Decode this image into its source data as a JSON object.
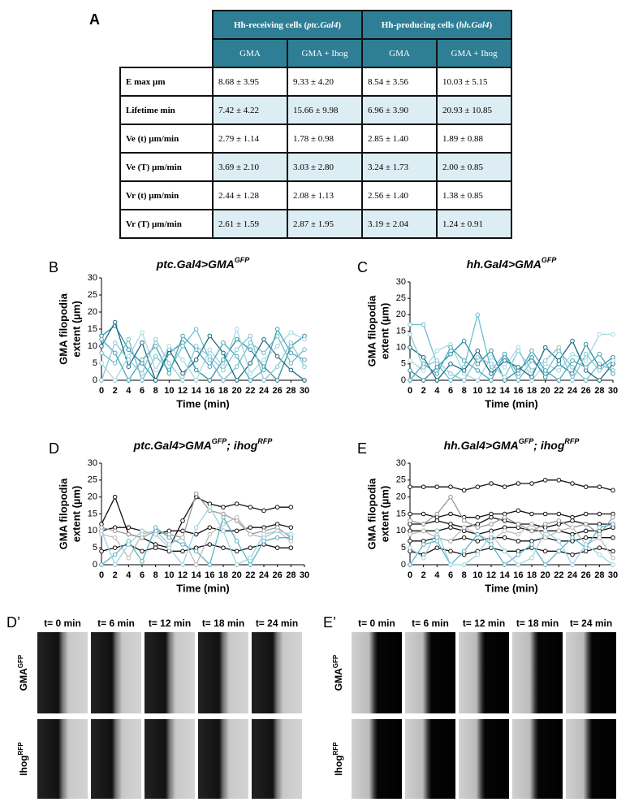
{
  "panel_a": {
    "label": "A",
    "table": {
      "groups": [
        {
          "text": "Hh-receiving cells (",
          "italic": "ptc.Gal4",
          "end": ")"
        },
        {
          "text": "Hh-producing cells (",
          "italic": "hh.Gal4",
          "end": ")"
        }
      ],
      "columns": [
        "GMA",
        "GMA + Ihog",
        "GMA",
        "GMA + Ihog"
      ],
      "rows": [
        [
          "E max µm",
          "8.68 ± 3.95",
          "9.33 ± 4.20",
          "8.54 ± 3.56",
          "10.03 ± 5.15"
        ],
        [
          "Lifetime min",
          "7.42 ± 4.22",
          "15.66 ± 9.98",
          "6.96 ± 3.90",
          "20.93 ± 10.85"
        ],
        [
          "Ve (t) µm/min",
          "2.79 ± 1.14",
          "1.78 ± 0.98",
          "2.85 ± 1.40",
          "1.89 ± 0.88"
        ],
        [
          "Ve (T) µm/min",
          "3.69 ± 2.10",
          "3.03 ± 2.80",
          "3.24 ± 1.73",
          "2.00 ± 0.85"
        ],
        [
          "Vr (t) µm/min",
          "2.44 ± 1.28",
          "2.08 ± 1.13",
          "2.56 ± 1.40",
          "1.38 ± 0.85"
        ],
        [
          "Vr (T) µm/min",
          "2.61 ± 1.59",
          "2.87 ± 1.95",
          "3.19 ± 2.04",
          "1.24 ± 0.91"
        ]
      ]
    }
  },
  "chart_data": [
    {
      "type": "line",
      "panel": "B",
      "title": [
        "ptc.Gal4>GMA",
        "GFP"
      ],
      "ylabel": [
        "GMA filopodia",
        "extent (µm)"
      ],
      "xlabel": "Time (min)",
      "x": [
        0,
        2,
        4,
        6,
        8,
        10,
        12,
        14,
        16,
        18,
        20,
        22,
        24,
        26,
        28,
        30
      ],
      "xlim": [
        0,
        30
      ],
      "xticks": [
        0,
        2,
        4,
        6,
        8,
        10,
        12,
        14,
        16,
        18,
        20,
        22,
        24,
        26,
        28,
        30
      ],
      "ylim": [
        0,
        30
      ],
      "yticks": [
        0,
        5,
        10,
        15,
        20,
        25,
        30
      ],
      "series": [
        {
          "color": "#2f8fa6",
          "values": [
            13,
            16,
            9,
            5,
            0,
            8,
            11,
            3,
            0,
            6,
            12,
            9,
            4,
            0,
            10,
            13
          ]
        },
        {
          "color": "#6dbfce",
          "values": [
            8,
            5,
            12,
            0,
            7,
            3,
            10,
            15,
            6,
            0,
            4,
            11,
            8,
            13,
            5,
            9
          ]
        },
        {
          "color": "#1c6a80",
          "values": [
            10,
            17,
            4,
            11,
            0,
            9,
            2,
            6,
            13,
            8,
            0,
            5,
            12,
            7,
            3,
            0
          ]
        },
        {
          "color": "#a6d8e2",
          "values": [
            5,
            0,
            7,
            14,
            3,
            10,
            6,
            0,
            9,
            4,
            15,
            2,
            6,
            10,
            14,
            12
          ]
        },
        {
          "color": "#4aa6bb",
          "values": [
            12,
            8,
            0,
            6,
            10,
            2,
            13,
            9,
            4,
            11,
            7,
            0,
            3,
            15,
            8,
            6
          ]
        },
        {
          "color": "#88c7d5",
          "values": [
            0,
            11,
            6,
            2,
            12,
            5,
            0,
            10,
            7,
            3,
            9,
            13,
            0,
            4,
            11,
            4
          ]
        }
      ]
    },
    {
      "type": "line",
      "panel": "C",
      "title": [
        "hh.Gal4>GMA",
        "GFP"
      ],
      "ylabel": [
        "GMA filopodia",
        "extent (µm)"
      ],
      "xlabel": "Time (min)",
      "x": [
        0,
        2,
        4,
        6,
        8,
        10,
        12,
        14,
        16,
        18,
        20,
        22,
        24,
        26,
        28,
        30
      ],
      "xlim": [
        0,
        30
      ],
      "xticks": [
        0,
        2,
        4,
        6,
        8,
        10,
        12,
        14,
        16,
        18,
        20,
        22,
        24,
        26,
        28,
        30
      ],
      "ylim": [
        0,
        30
      ],
      "yticks": [
        0,
        5,
        10,
        15,
        20,
        25,
        30
      ],
      "series": [
        {
          "color": "#6dbfce",
          "values": [
            17,
            17,
            5,
            0,
            4,
            20,
            3,
            8,
            0,
            6,
            2,
            9,
            4,
            0,
            5,
            3
          ]
        },
        {
          "color": "#a6d8e2",
          "values": [
            6,
            3,
            9,
            11,
            2,
            0,
            7,
            4,
            10,
            0,
            5,
            3,
            8,
            6,
            14,
            14
          ]
        },
        {
          "color": "#2f8fa6",
          "values": [
            3,
            0,
            4,
            8,
            12,
            5,
            9,
            0,
            3,
            7,
            1,
            5,
            2,
            11,
            4,
            7
          ]
        },
        {
          "color": "#1c6a80",
          "values": [
            10,
            7,
            0,
            5,
            3,
            9,
            2,
            6,
            4,
            1,
            10,
            6,
            12,
            3,
            0,
            5
          ]
        },
        {
          "color": "#4aa6bb",
          "values": [
            0,
            5,
            2,
            10,
            6,
            3,
            0,
            8,
            2,
            9,
            3,
            0,
            6,
            4,
            8,
            2
          ]
        },
        {
          "color": "#88c7d5",
          "values": [
            14,
            4,
            6,
            2,
            0,
            7,
            5,
            1,
            9,
            3,
            6,
            10,
            0,
            8,
            3,
            6
          ]
        }
      ]
    },
    {
      "type": "line",
      "panel": "D",
      "title": [
        "ptc.Gal4>GMA",
        "GFP",
        "; ihog",
        "RFP"
      ],
      "ylabel": [
        "GMA filopodia",
        "extent (µm)"
      ],
      "xlabel": "Time (min)",
      "x": [
        0,
        2,
        4,
        6,
        8,
        10,
        12,
        14,
        16,
        18,
        20,
        22,
        24,
        26,
        28,
        30
      ],
      "xlim": [
        0,
        30
      ],
      "xticks": [
        0,
        2,
        4,
        6,
        8,
        10,
        12,
        14,
        16,
        18,
        20,
        22,
        24,
        26,
        28,
        30
      ],
      "ylim": [
        0,
        30
      ],
      "yticks": [
        0,
        5,
        10,
        15,
        20,
        25,
        30
      ],
      "series": [
        {
          "color": "#111111",
          "values": [
            12,
            20,
            9,
            8,
            6,
            5,
            13,
            20,
            18,
            17,
            18,
            17,
            16,
            17,
            17,
            null
          ]
        },
        {
          "color": "#111111",
          "values": [
            10,
            11,
            11,
            10,
            9,
            10,
            10,
            9,
            11,
            10,
            10,
            11,
            11,
            12,
            11,
            null
          ]
        },
        {
          "color": "#111111",
          "values": [
            4,
            5,
            6,
            4,
            5,
            4,
            4,
            5,
            6,
            5,
            4,
            5,
            6,
            5,
            5,
            null
          ]
        },
        {
          "color": "#999999",
          "values": [
            11,
            10,
            9,
            8,
            10,
            9,
            8,
            21,
            16,
            15,
            13,
            9,
            10,
            11,
            8,
            null
          ]
        },
        {
          "color": "#bbbbbb",
          "values": [
            9,
            8,
            2,
            9,
            10,
            6,
            8,
            0,
            9,
            12,
            14,
            9,
            8,
            10,
            7,
            null
          ]
        },
        {
          "color": "#5ab4c8",
          "values": [
            0,
            3,
            7,
            1,
            11,
            8,
            6,
            4,
            0,
            14,
            7,
            0,
            7,
            8,
            8,
            null
          ]
        },
        {
          "color": "#9fd3df",
          "values": [
            10,
            0,
            6,
            10,
            9,
            5,
            0,
            11,
            17,
            10,
            0,
            2,
            9,
            10,
            9,
            null
          ]
        }
      ]
    },
    {
      "type": "line",
      "panel": "E",
      "title": [
        "hh.Gal4>GMA",
        "GFP",
        "; ihog",
        "RFP"
      ],
      "ylabel": [
        "GMA filopodia",
        "extent (µm)"
      ],
      "xlabel": "Time (min)",
      "x": [
        0,
        2,
        4,
        6,
        8,
        10,
        12,
        14,
        16,
        18,
        20,
        22,
        24,
        26,
        28,
        30
      ],
      "xlim": [
        0,
        30
      ],
      "xticks": [
        0,
        2,
        4,
        6,
        8,
        10,
        12,
        14,
        16,
        18,
        20,
        22,
        24,
        26,
        28,
        30
      ],
      "ylim": [
        0,
        30
      ],
      "yticks": [
        0,
        5,
        10,
        15,
        20,
        25,
        30
      ],
      "series": [
        {
          "color": "#111111",
          "values": [
            23,
            23,
            23,
            23,
            22,
            23,
            24,
            23,
            24,
            24,
            25,
            25,
            24,
            23,
            23,
            22
          ]
        },
        {
          "color": "#111111",
          "values": [
            15,
            15,
            14,
            15,
            14,
            14,
            15,
            15,
            16,
            15,
            15,
            15,
            14,
            15,
            15,
            15
          ]
        },
        {
          "color": "#111111",
          "values": [
            12,
            12,
            13,
            12,
            11,
            12,
            14,
            13,
            12,
            12,
            11,
            12,
            13,
            12,
            12,
            12
          ]
        },
        {
          "color": "#111111",
          "values": [
            10,
            10,
            10,
            11,
            10,
            9,
            10,
            11,
            11,
            10,
            10,
            10,
            9,
            10,
            10,
            11
          ]
        },
        {
          "color": "#111111",
          "values": [
            7,
            7,
            8,
            7,
            8,
            7,
            8,
            8,
            7,
            7,
            8,
            7,
            7,
            8,
            8,
            8
          ]
        },
        {
          "color": "#111111",
          "values": [
            4,
            3,
            5,
            4,
            3,
            4,
            5,
            4,
            4,
            5,
            4,
            4,
            3,
            4,
            5,
            4
          ]
        },
        {
          "color": "#999999",
          "values": [
            13,
            12,
            15,
            20,
            13,
            11,
            12,
            14,
            12,
            10,
            12,
            13,
            11,
            12,
            9,
            14
          ]
        },
        {
          "color": "#bbbbbb",
          "values": [
            9,
            10,
            8,
            7,
            11,
            9,
            7,
            10,
            9,
            12,
            8,
            10,
            11,
            6,
            8,
            2
          ]
        },
        {
          "color": "#5ab4c8",
          "values": [
            0,
            6,
            7,
            0,
            4,
            9,
            6,
            0,
            3,
            6,
            0,
            4,
            8,
            5,
            11,
            12
          ]
        },
        {
          "color": "#9fd3df",
          "values": [
            5,
            2,
            10,
            0,
            0,
            3,
            9,
            4,
            0,
            2,
            10,
            7,
            0,
            6,
            3,
            0
          ]
        }
      ]
    }
  ],
  "image_panels": [
    {
      "label": "D’",
      "times": [
        "t= 0 min",
        "t= 6 min",
        "t= 12 min",
        "t= 18 min",
        "t= 24 min"
      ],
      "rows": [
        [
          "GMA",
          "GFP"
        ],
        [
          "Ihog",
          "RFP"
        ]
      ]
    },
    {
      "label": "E’",
      "times": [
        "t= 0 min",
        "t= 6 min",
        "t= 12 min",
        "t= 18 min",
        "t= 24 min"
      ],
      "rows": [
        [
          "GMA",
          "GFP"
        ],
        [
          "Ihog",
          "RFP"
        ]
      ]
    }
  ]
}
